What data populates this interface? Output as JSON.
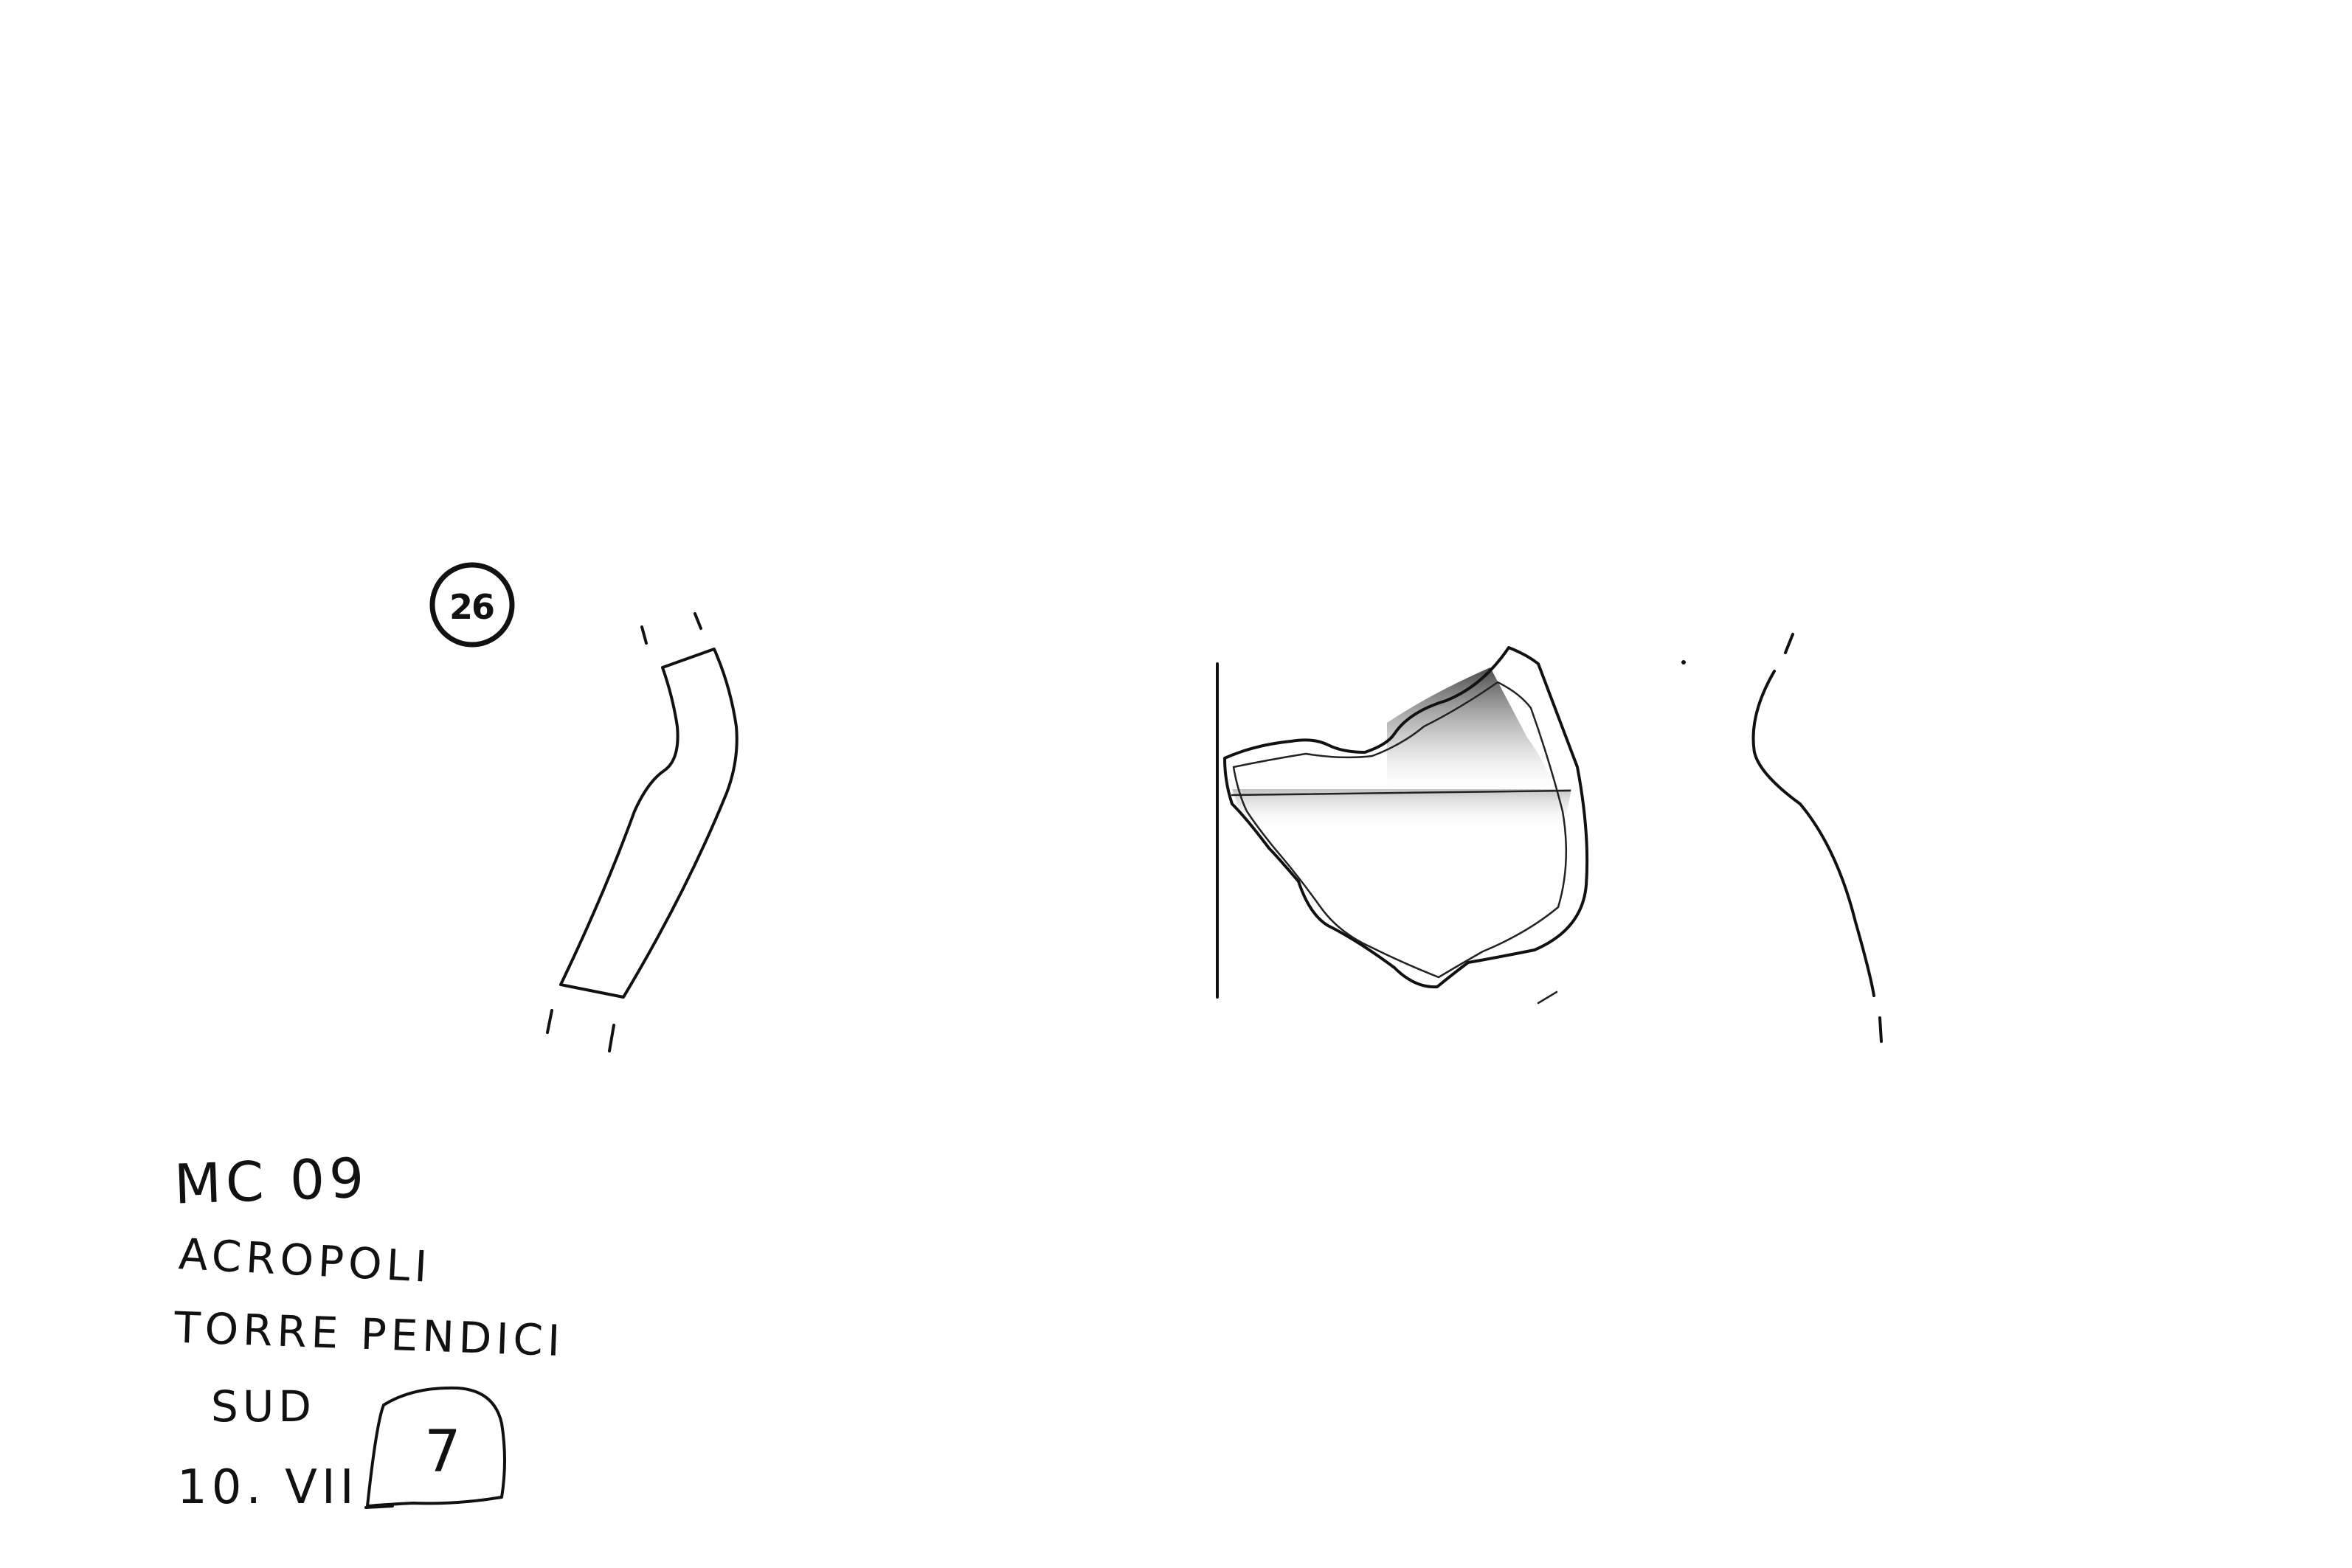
{
  "catalog_number": "26",
  "labels": {
    "site_code": "MC 09",
    "area": "ACROPOLI",
    "sector_line1": "TORRE PENDICI",
    "sector_line2": "SUD",
    "date": "10. VII",
    "box_number": "7"
  }
}
